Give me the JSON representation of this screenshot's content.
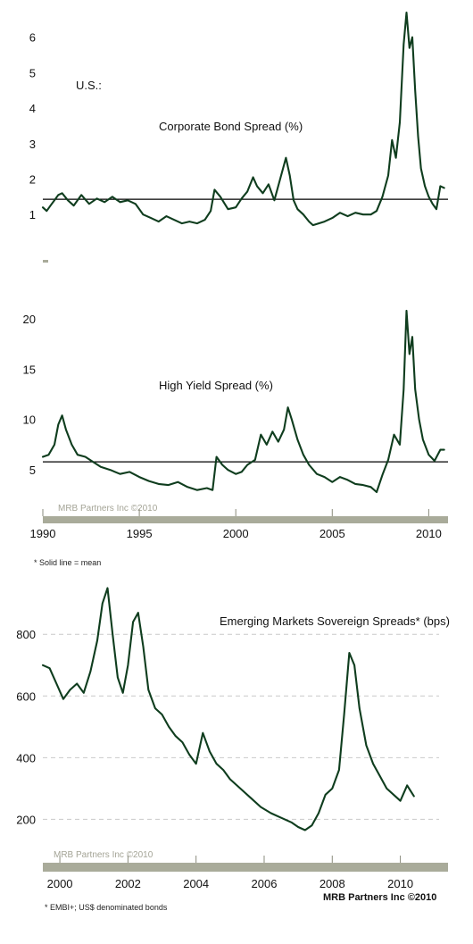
{
  "chart_data": [
    {
      "type": "line",
      "title": "U.S.:",
      "subtitle": "Corporate Bond Spread (%)",
      "ylim": [
        0.5,
        6.8
      ],
      "xlim": [
        1990,
        2011
      ],
      "yticks": [
        1,
        2,
        3,
        4,
        5,
        6
      ],
      "ytick_labels": [
        "1",
        "2",
        "3",
        "4",
        "5",
        "6"
      ],
      "grid": false,
      "mean_line": 1.43,
      "series": [
        {
          "x": [
            1990.0,
            1990.2,
            1990.4,
            1990.6,
            1990.8,
            1991.0,
            1991.3,
            1991.6,
            1992.0,
            1992.4,
            1992.8,
            1993.2,
            1993.6,
            1994.0,
            1994.4,
            1994.8,
            1995.2,
            1995.6,
            1996.0,
            1996.4,
            1996.8,
            1997.2,
            1997.6,
            1998.0,
            1998.4,
            1998.7,
            1998.9,
            1999.2,
            1999.6,
            2000.0,
            2000.3,
            2000.6,
            2000.9,
            2001.1,
            2001.4,
            2001.7,
            2002.0,
            2002.3,
            2002.6,
            2002.8,
            2003.0,
            2003.2,
            2003.5,
            2003.8,
            2004.0,
            2004.3,
            2004.6,
            2005.0,
            2005.4,
            2005.8,
            2006.2,
            2006.6,
            2007.0,
            2007.3,
            2007.6,
            2007.9,
            2008.1,
            2008.3,
            2008.5,
            2008.7,
            2008.85,
            2009.0,
            2009.15,
            2009.3,
            2009.45,
            2009.6,
            2009.8,
            2010.0,
            2010.2,
            2010.4,
            2010.6,
            2010.8
          ],
          "values": [
            1.2,
            1.1,
            1.25,
            1.4,
            1.55,
            1.6,
            1.4,
            1.25,
            1.55,
            1.3,
            1.45,
            1.35,
            1.5,
            1.35,
            1.4,
            1.3,
            1.0,
            0.9,
            0.8,
            0.95,
            0.85,
            0.75,
            0.8,
            0.75,
            0.85,
            1.1,
            1.7,
            1.5,
            1.15,
            1.2,
            1.45,
            1.65,
            2.05,
            1.8,
            1.6,
            1.85,
            1.4,
            2.0,
            2.6,
            2.1,
            1.4,
            1.15,
            1.0,
            0.8,
            0.7,
            0.75,
            0.8,
            0.9,
            1.05,
            0.95,
            1.05,
            1.0,
            1.0,
            1.1,
            1.5,
            2.1,
            3.1,
            2.6,
            3.6,
            5.8,
            6.7,
            5.7,
            6.0,
            4.5,
            3.2,
            2.3,
            1.8,
            1.5,
            1.3,
            1.15,
            1.8,
            1.75
          ]
        }
      ]
    },
    {
      "type": "line",
      "subtitle": "High Yield Spread (%)",
      "watermark": "MRB Partners Inc ©2010",
      "ylim": [
        2.0,
        21.5
      ],
      "xlim": [
        1990,
        2011
      ],
      "yticks": [
        5,
        10,
        15,
        20
      ],
      "ytick_labels": [
        "5",
        "10",
        "15",
        "20"
      ],
      "xticks": [
        1990,
        1995,
        2000,
        2005,
        2010
      ],
      "xtick_labels": [
        "1990",
        "1995",
        "2000",
        "2005",
        "2010"
      ],
      "grid": false,
      "mean_line": 5.8,
      "footnote": "* Solid line = mean",
      "series": [
        {
          "x": [
            1990.0,
            1990.3,
            1990.6,
            1990.8,
            1991.0,
            1991.2,
            1991.5,
            1991.8,
            1992.2,
            1992.6,
            1993.0,
            1993.5,
            1994.0,
            1994.5,
            1995.0,
            1995.5,
            1996.0,
            1996.5,
            1997.0,
            1997.5,
            1998.0,
            1998.5,
            1998.8,
            1999.0,
            1999.3,
            1999.6,
            2000.0,
            2000.3,
            2000.6,
            2001.0,
            2001.3,
            2001.6,
            2001.9,
            2002.2,
            2002.5,
            2002.7,
            2002.9,
            2003.2,
            2003.5,
            2003.8,
            2004.2,
            2004.6,
            2005.0,
            2005.4,
            2005.8,
            2006.2,
            2006.6,
            2007.0,
            2007.3,
            2007.6,
            2007.9,
            2008.2,
            2008.5,
            2008.7,
            2008.85,
            2009.0,
            2009.15,
            2009.3,
            2009.5,
            2009.7,
            2010.0,
            2010.3,
            2010.6,
            2010.8
          ],
          "values": [
            6.3,
            6.5,
            7.5,
            9.5,
            10.4,
            9.0,
            7.5,
            6.5,
            6.3,
            5.8,
            5.3,
            5.0,
            4.6,
            4.8,
            4.3,
            3.9,
            3.6,
            3.5,
            3.8,
            3.3,
            3.0,
            3.2,
            3.0,
            6.3,
            5.5,
            5.0,
            4.6,
            4.8,
            5.5,
            6.0,
            8.5,
            7.5,
            8.8,
            7.8,
            9.0,
            11.2,
            10.0,
            8.0,
            6.5,
            5.5,
            4.6,
            4.3,
            3.8,
            4.3,
            4.0,
            3.6,
            3.5,
            3.3,
            2.8,
            4.5,
            6.0,
            8.5,
            7.5,
            13.0,
            20.8,
            16.5,
            18.2,
            13.0,
            10.0,
            8.0,
            6.5,
            5.9,
            7.0,
            7.0
          ]
        }
      ]
    },
    {
      "type": "line",
      "title": "Emerging Markets Sovereign Spreads* (bps)",
      "watermark": "MRB Partners Inc ©2010",
      "credit": "MRB Partners Inc ©2010",
      "ylim": [
        120,
        960
      ],
      "xlim": [
        1999.5,
        2011.4
      ],
      "yticks": [
        200,
        400,
        600,
        800
      ],
      "ytick_labels": [
        "200",
        "400",
        "600",
        "800"
      ],
      "xticks": [
        2000,
        2002,
        2004,
        2006,
        2008,
        2010
      ],
      "xtick_labels": [
        "2000",
        "2002",
        "2004",
        "2006",
        "2008",
        "2010"
      ],
      "grid": true,
      "footnote": "* EMBI+;  US$ denominated bonds",
      "series": [
        {
          "x": [
            1999.5,
            1999.7,
            1999.9,
            2000.1,
            2000.3,
            2000.5,
            2000.7,
            2000.9,
            2001.1,
            2001.25,
            2001.4,
            2001.55,
            2001.7,
            2001.85,
            2002.0,
            2002.15,
            2002.3,
            2002.45,
            2002.6,
            2002.8,
            2003.0,
            2003.2,
            2003.4,
            2003.6,
            2003.8,
            2004.0,
            2004.2,
            2004.4,
            2004.6,
            2004.8,
            2005.0,
            2005.3,
            2005.6,
            2005.9,
            2006.2,
            2006.5,
            2006.8,
            2007.0,
            2007.2,
            2007.4,
            2007.6,
            2007.8,
            2008.0,
            2008.2,
            2008.35,
            2008.5,
            2008.65,
            2008.8,
            2009.0,
            2009.2,
            2009.4,
            2009.6,
            2009.8,
            2010.0,
            2010.2,
            2010.4
          ],
          "values": [
            700,
            690,
            640,
            590,
            620,
            640,
            610,
            680,
            780,
            900,
            950,
            800,
            660,
            610,
            700,
            840,
            870,
            760,
            620,
            560,
            540,
            500,
            470,
            450,
            410,
            380,
            480,
            420,
            380,
            360,
            330,
            300,
            270,
            240,
            220,
            205,
            190,
            175,
            165,
            180,
            220,
            280,
            300,
            360,
            540,
            740,
            700,
            560,
            440,
            380,
            340,
            300,
            280,
            260,
            310,
            275
          ]
        }
      ]
    }
  ]
}
